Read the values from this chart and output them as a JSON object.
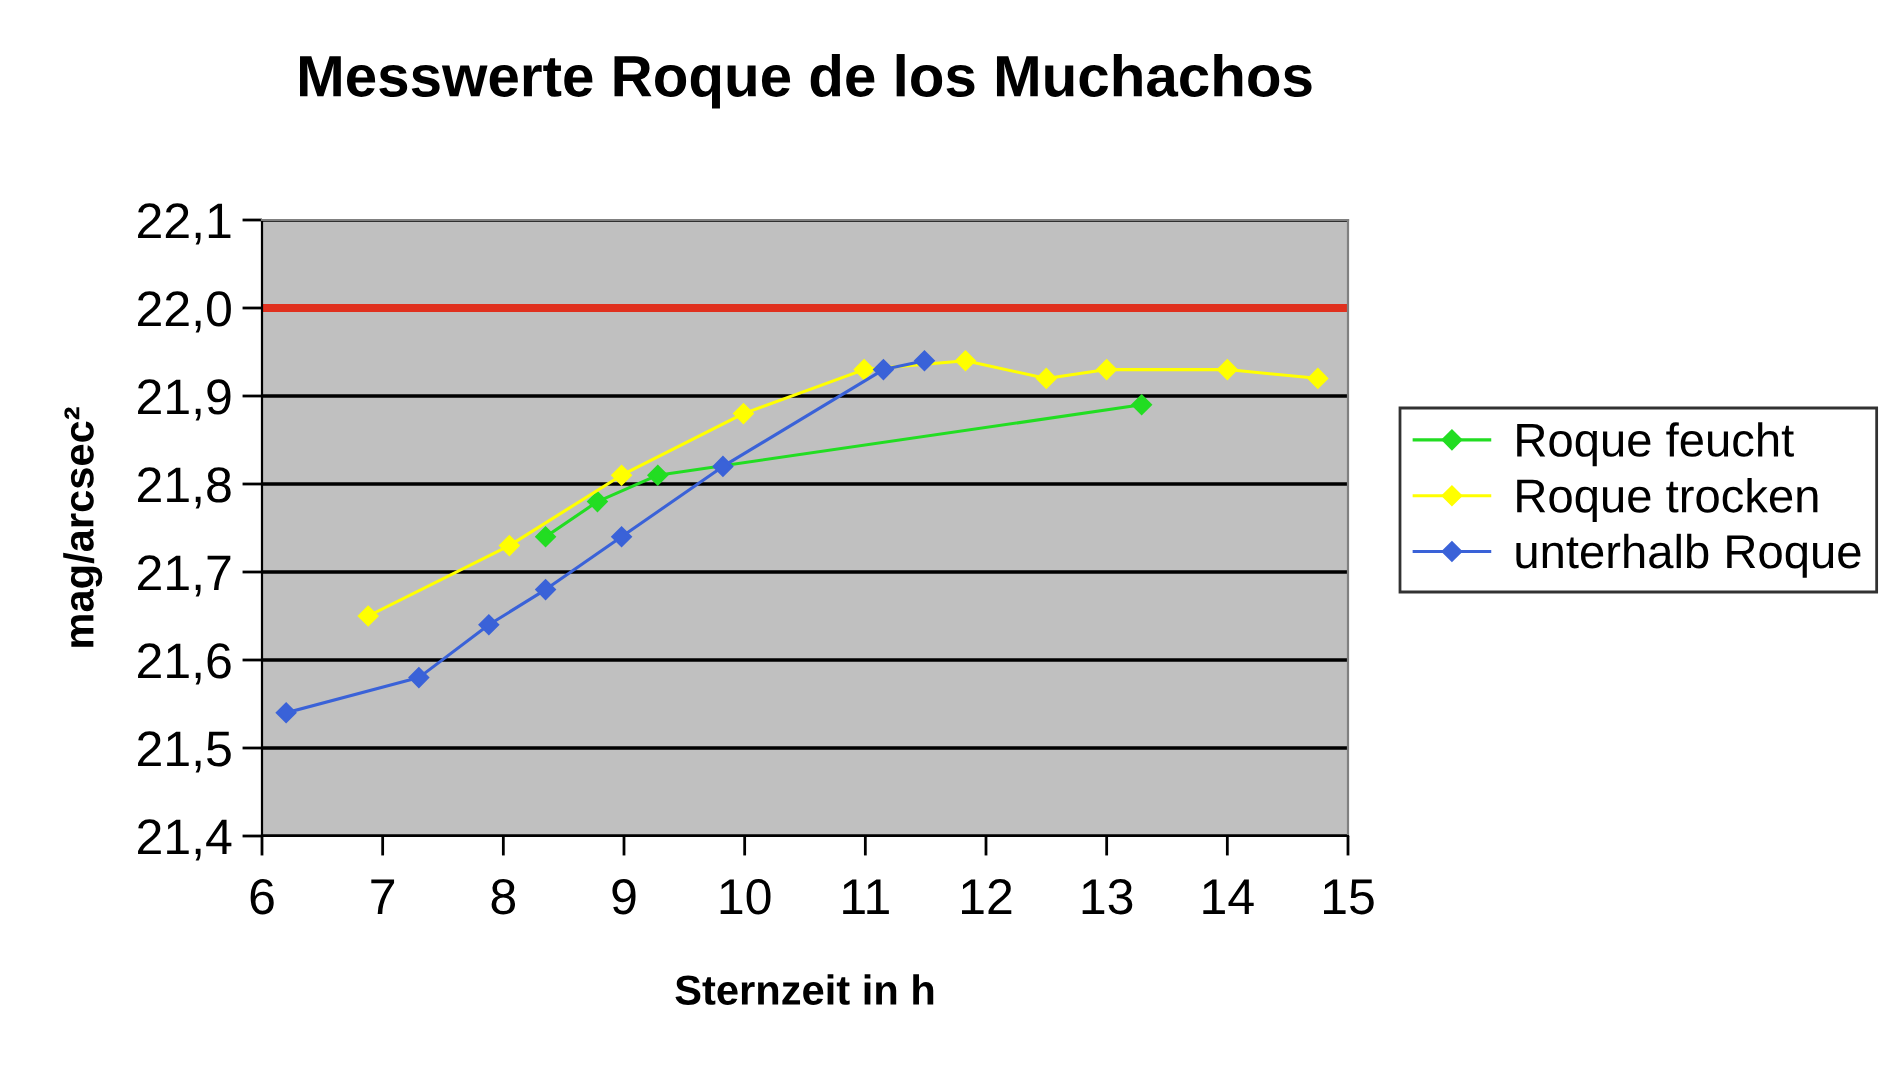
{
  "chart_data": {
    "type": "line",
    "title": "Messwerte Roque de los Muchachos",
    "xlabel": "Sternzeit in h",
    "ylabel": "mag/arcsec²",
    "series": [
      {
        "name": "Roque feucht",
        "color": "#22dd22",
        "x": [
          8.35,
          8.78,
          9.28,
          13.29
        ],
        "values": [
          21.74,
          21.78,
          21.81,
          21.89
        ]
      },
      {
        "name": "Roque trocken",
        "color": "#ffff00",
        "x": [
          6.88,
          8.05,
          8.98,
          9.99,
          10.99,
          11.83,
          12.5,
          13.0,
          14.0,
          14.75
        ],
        "values": [
          21.65,
          21.73,
          21.81,
          21.88,
          21.93,
          21.94,
          21.92,
          21.93,
          21.93,
          21.92
        ]
      },
      {
        "name": "unterhalb Roque",
        "color": "#3a62d8",
        "x": [
          6.2,
          7.3,
          7.88,
          8.35,
          8.98,
          9.82,
          11.15,
          11.49
        ],
        "values": [
          21.54,
          21.58,
          21.64,
          21.68,
          21.74,
          21.82,
          21.93,
          21.94
        ]
      }
    ],
    "xlim": [
      6,
      15
    ],
    "xticks": [
      6,
      7,
      8,
      9,
      10,
      11,
      12,
      13,
      14,
      15
    ],
    "ylim": [
      21.4,
      22.1
    ],
    "yticks": [
      {
        "value": 21.4,
        "label": "21,4"
      },
      {
        "value": 21.5,
        "label": "21,5"
      },
      {
        "value": 21.6,
        "label": "21,6"
      },
      {
        "value": 21.7,
        "label": "21,7"
      },
      {
        "value": 21.8,
        "label": "21,8"
      },
      {
        "value": 21.9,
        "label": "21,9"
      },
      {
        "value": 22.0,
        "label": "22,0"
      },
      {
        "value": 22.1,
        "label": "22,1"
      }
    ],
    "ref_lines": [
      {
        "axis": "y",
        "value": 22.0,
        "label": null,
        "color": "#e0301e"
      }
    ],
    "grid": "y",
    "legend": "right",
    "marker": "diamond",
    "line_style": "solid"
  }
}
